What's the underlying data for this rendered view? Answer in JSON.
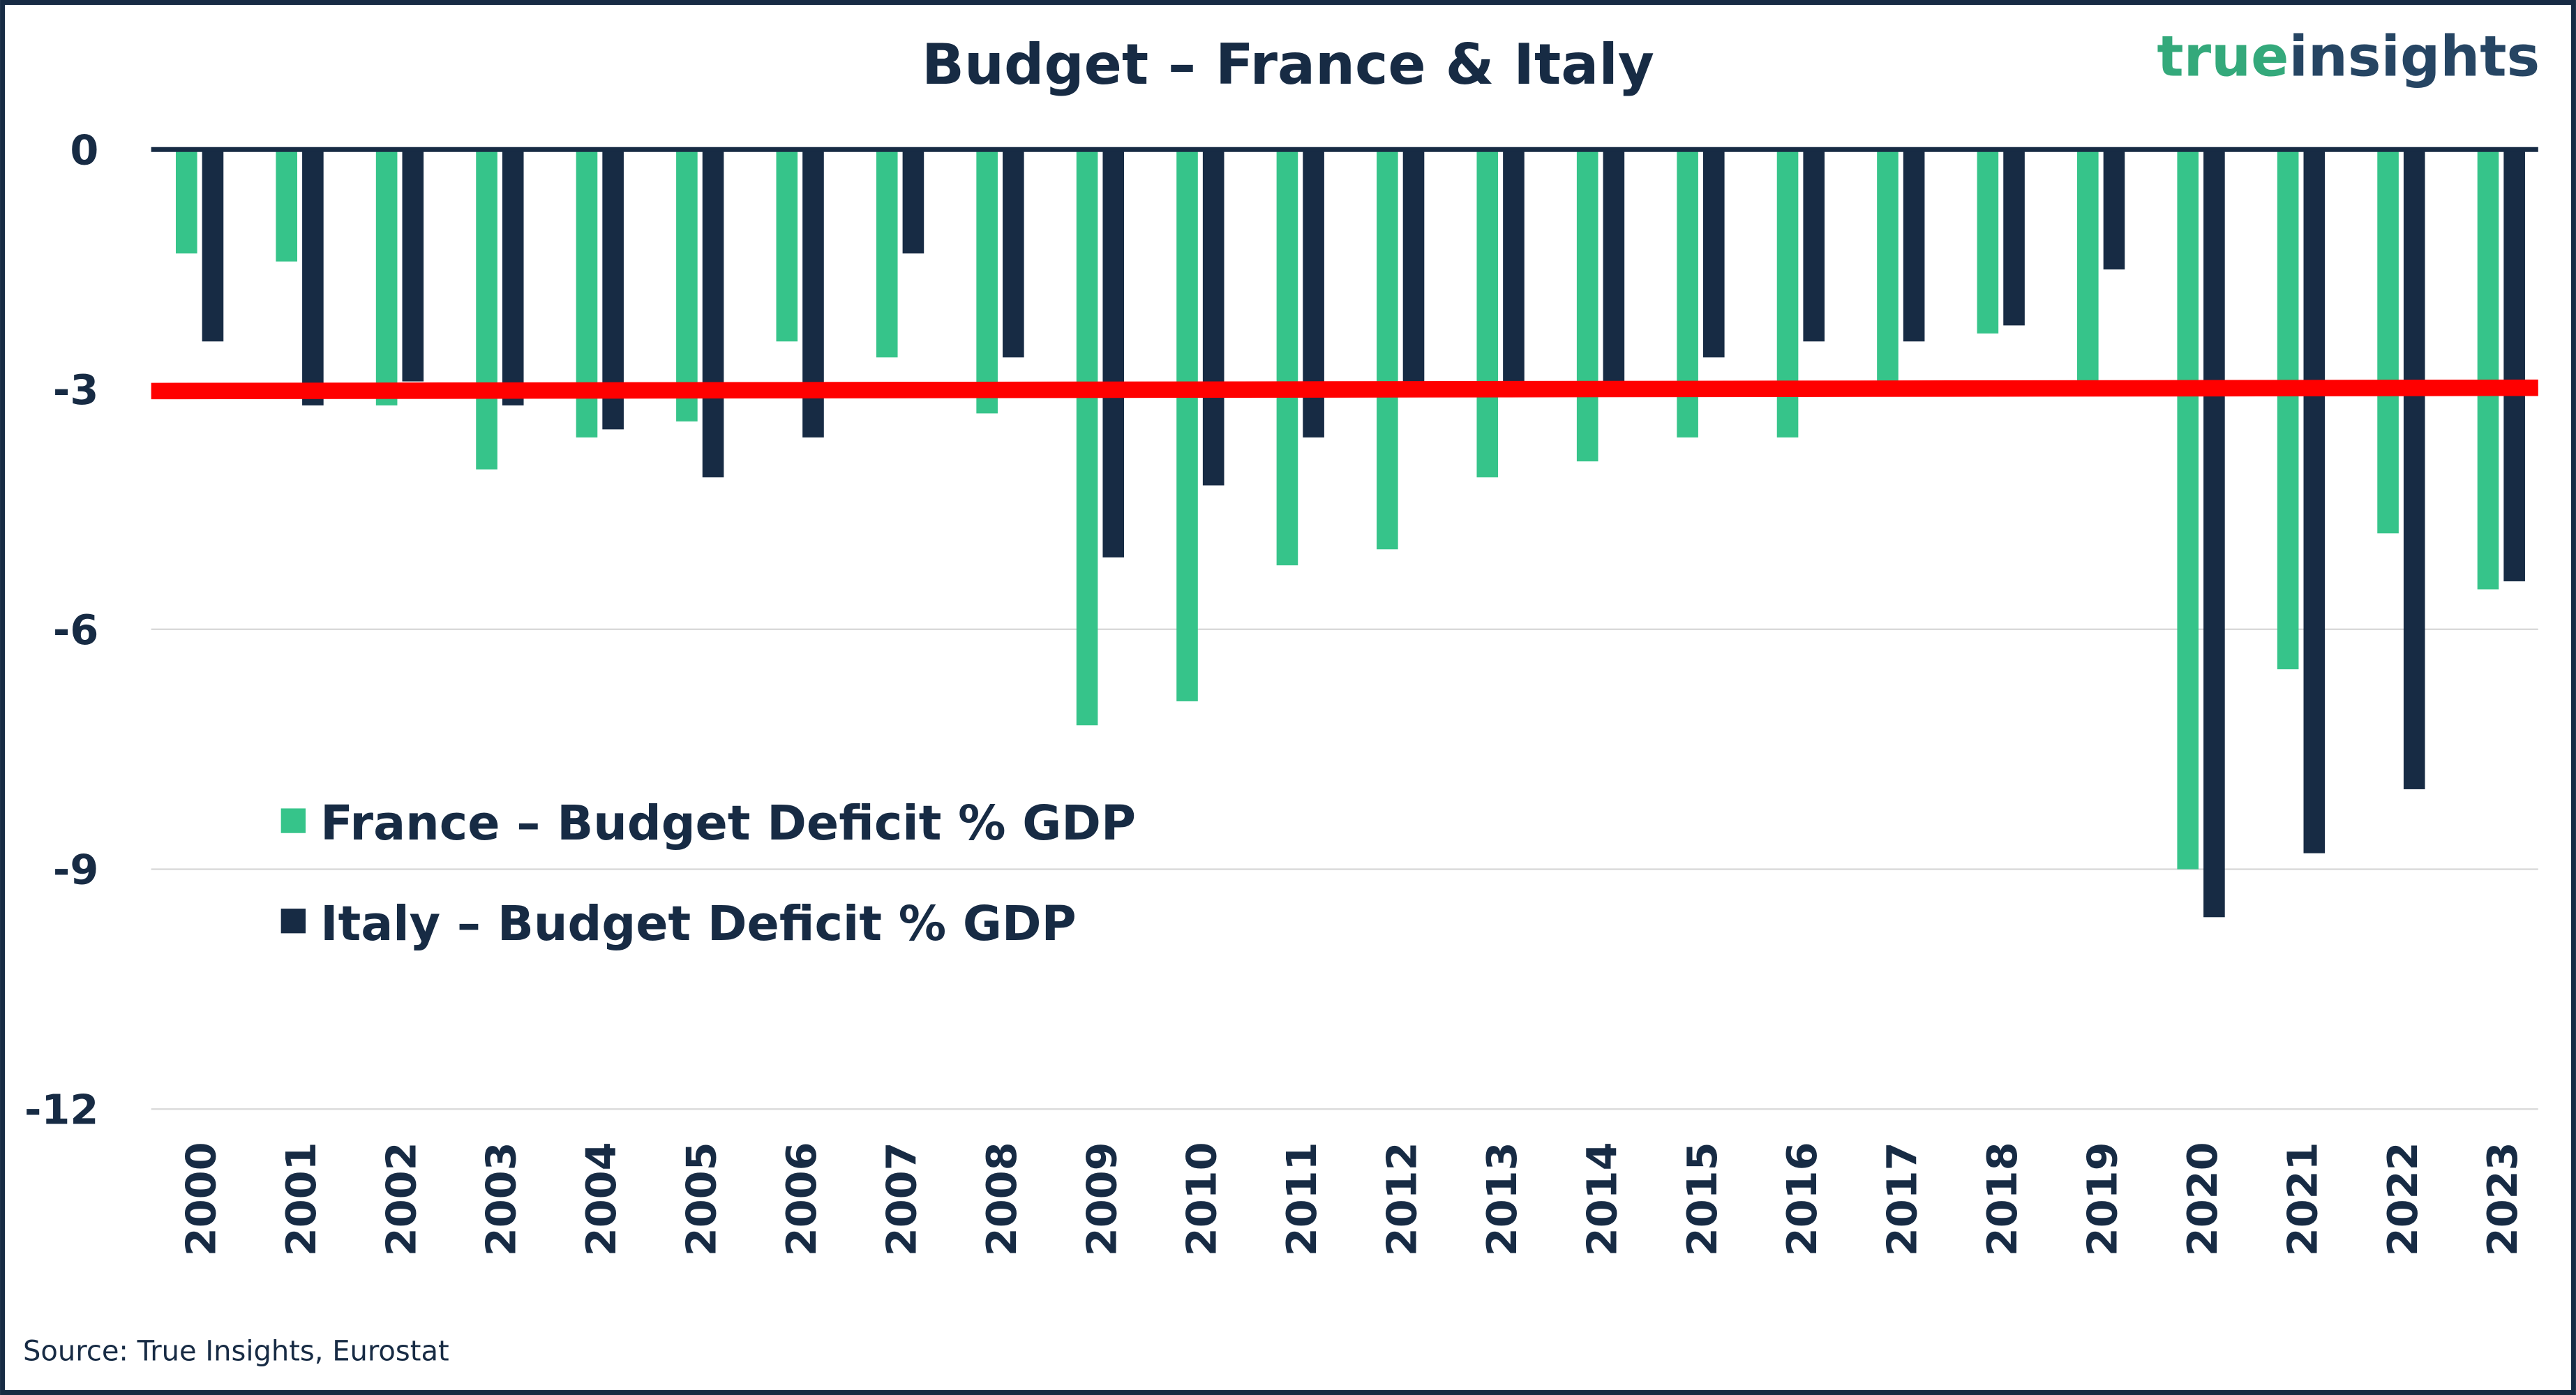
{
  "colors": {
    "france": "#36c48a",
    "italy": "#172b44",
    "threshold": "#ff0000",
    "grid": "#d9d9d9",
    "logo_green": "#34a97b",
    "logo_navy": "#264563"
  },
  "logo": {
    "part1": "true",
    "part2": "insights"
  },
  "source": "Source: True Insights, Eurostat",
  "chart_data": {
    "type": "bar",
    "title": "Budget – France & Italy",
    "xlabel": "",
    "ylabel": "",
    "ylim": [
      -12,
      0
    ],
    "yticks": [
      "0",
      "-3",
      "-6",
      "-9",
      "-12"
    ],
    "ytick_values": [
      0,
      -3,
      -6,
      -9,
      -12
    ],
    "grid": true,
    "legend_position": "center-left",
    "categories": [
      "2000",
      "2001",
      "2002",
      "2003",
      "2004",
      "2005",
      "2006",
      "2007",
      "2008",
      "2009",
      "2010",
      "2011",
      "2012",
      "2013",
      "2014",
      "2015",
      "2016",
      "2017",
      "2018",
      "2019",
      "2020",
      "2021",
      "2022",
      "2023"
    ],
    "series": [
      {
        "name": "France – Budget Deficit % GDP",
        "values": [
          -1.3,
          -1.4,
          -3.2,
          -4.0,
          -3.6,
          -3.4,
          -2.4,
          -2.6,
          -3.3,
          -7.2,
          -6.9,
          -5.2,
          -5.0,
          -4.1,
          -3.9,
          -3.6,
          -3.6,
          -3.0,
          -2.3,
          -3.0,
          -9.0,
          -6.5,
          -4.8,
          -5.5
        ]
      },
      {
        "name": "Italy – Budget Deficit % GDP",
        "values": [
          -2.4,
          -3.2,
          -2.9,
          -3.2,
          -3.5,
          -4.1,
          -3.6,
          -1.3,
          -2.6,
          -5.1,
          -4.2,
          -3.6,
          -2.9,
          -2.9,
          -3.0,
          -2.6,
          -2.4,
          -2.4,
          -2.2,
          -1.5,
          -9.6,
          -8.8,
          -8.0,
          -5.4
        ]
      }
    ],
    "reference_line": {
      "value": -3
    }
  }
}
